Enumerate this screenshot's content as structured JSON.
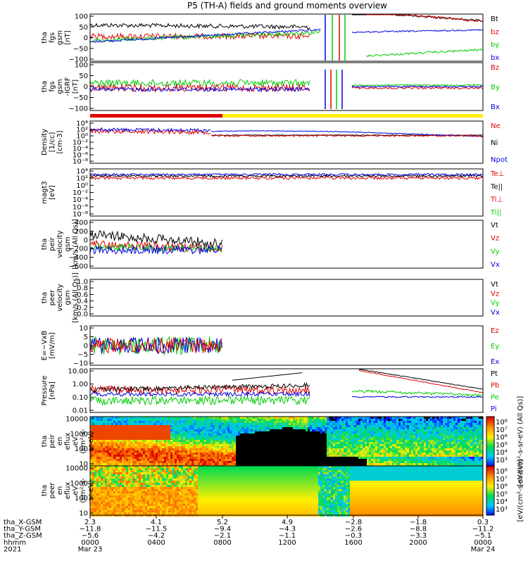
{
  "title": "P5 (TH-A) fields and ground moments overview",
  "colors": {
    "black": "#000000",
    "red": "#e00000",
    "green": "#00cc00",
    "blue": "#0000e0",
    "yellow": "#ffee00",
    "bar_red": "#e00000"
  },
  "chart_data": [
    {
      "type": "line",
      "id": "fgs",
      "ylabel": [
        "tha",
        "fgs",
        "gsm",
        "[nT]"
      ],
      "ylim": [
        -100,
        100
      ],
      "ticks": [
        "100",
        "50",
        "0",
        "−50",
        "−100"
      ],
      "legend": [
        {
          "label": "Bt",
          "color": "#000000"
        },
        {
          "label": "bz",
          "color": "#e00000"
        },
        {
          "label": "by",
          "color": "#00cc00"
        },
        {
          "label": "bx",
          "color": "#0000e0"
        }
      ]
    },
    {
      "type": "line",
      "id": "fgs_igrf",
      "ylabel": [
        "tha",
        "fgs",
        "gsm",
        "-IGRF",
        "[nT]"
      ],
      "ylim": [
        -120,
        120
      ],
      "ticks": [
        "100",
        "50",
        "0",
        "−50",
        "−100"
      ],
      "legend": [
        {
          "label": "Bz",
          "color": "#e00000"
        },
        {
          "label": "By",
          "color": "#00cc00"
        },
        {
          "label": "Bx",
          "color": "#0000e0"
        }
      ]
    },
    {
      "type": "line",
      "id": "density",
      "ylabel": [
        "Density",
        "[1/cc]",
        "[cm-3]"
      ],
      "log": true,
      "ticks": [
        "10⁴",
        "10²",
        "10⁰",
        "10⁻²",
        "10⁻⁴",
        "10⁻⁶",
        "10⁻⁸"
      ],
      "legend": [
        {
          "label": "Ne",
          "color": "#e00000"
        },
        {
          "label": "Ni",
          "color": "#000000"
        },
        {
          "label": "Npot",
          "color": "#0000e0"
        }
      ]
    },
    {
      "type": "line",
      "id": "temp",
      "ylabel": [
        "magt3",
        "[eV]"
      ],
      "log": true,
      "ticks": [
        "10⁴",
        "10²",
        "10⁰",
        "10⁻²",
        "10⁻⁴",
        "10⁻⁶",
        "10⁻⁸"
      ],
      "legend": [
        {
          "label": "Te⊥",
          "color": "#e00000"
        },
        {
          "label": "Te||",
          "color": "#000000"
        },
        {
          "label": "Ti⊥",
          "color": "#e00000"
        },
        {
          "label": "Ti||",
          "color": "#00cc00"
        }
      ]
    },
    {
      "type": "line",
      "id": "peir_vel",
      "ylabel": [
        "tha",
        "peir",
        "velocity",
        "gsm",
        "[km/s (All Qs)]"
      ],
      "ylim": [
        -600,
        400
      ],
      "ticks": [
        "400",
        "200",
        "0",
        "−200",
        "−400",
        "−600"
      ],
      "legend": [
        {
          "label": "Vt",
          "color": "#000000"
        },
        {
          "label": "Vz",
          "color": "#e00000"
        },
        {
          "label": "Vy",
          "color": "#00cc00"
        },
        {
          "label": "Vx",
          "color": "#0000e0"
        }
      ]
    },
    {
      "type": "line",
      "id": "peer_vel",
      "ylabel": [
        "tha",
        "peer",
        "velocity",
        "gsm",
        "[km/s (All Qs)]"
      ],
      "ylim": [
        0,
        1
      ],
      "ticks": [
        "1.0",
        "0.8",
        "0.6",
        "0.4",
        "0.2",
        "0.0"
      ],
      "legend": [
        {
          "label": "Vt",
          "color": "#000000"
        },
        {
          "label": "Vz",
          "color": "#e00000"
        },
        {
          "label": "Vy",
          "color": "#00cc00"
        },
        {
          "label": "Vx",
          "color": "#0000e0"
        }
      ]
    },
    {
      "type": "line",
      "id": "efield",
      "ylabel": [
        "E=−VxB",
        "[mV/m]"
      ],
      "ylim": [
        -10,
        10
      ],
      "ticks": [
        "10",
        "5",
        "0",
        "−5",
        "−10"
      ],
      "legend": [
        {
          "label": "Ez",
          "color": "#e00000"
        },
        {
          "label": "Ey",
          "color": "#00cc00"
        },
        {
          "label": "Ex",
          "color": "#0000e0"
        }
      ]
    },
    {
      "type": "line",
      "id": "pressure",
      "ylabel": [
        "Pressure",
        "[nPa]"
      ],
      "log": true,
      "ticks": [
        "10.00",
        "1.00",
        "0.10",
        "0.01"
      ],
      "legend": [
        {
          "label": "Pt",
          "color": "#000000"
        },
        {
          "label": "Pb",
          "color": "#e00000"
        },
        {
          "label": "Pe",
          "color": "#00cc00"
        },
        {
          "label": "Pi",
          "color": "#0000e0"
        }
      ]
    },
    {
      "type": "heatmap",
      "id": "peir_spec",
      "ylabel": [
        "tha",
        "peir",
        "en",
        "eflux",
        "eV",
        "(cm²-s-",
        "sr-eV)"
      ],
      "ticks": [
        "10000",
        "1000",
        "100",
        "10"
      ],
      "colorbar": {
        "ticks": [
          "10⁸",
          "10⁷",
          "10⁶",
          "10⁵",
          "10⁴",
          "10³"
        ],
        "label": "[eV/(cm²-s-sr-eV) (All Qs)]"
      }
    },
    {
      "type": "heatmap",
      "id": "peer_spec",
      "ylabel": [
        "tha",
        "peer",
        "en",
        "eflux",
        "eV",
        "(cm²-s-",
        "sr-eV)"
      ],
      "ticks": [
        "10000",
        "1000",
        "100",
        "10"
      ],
      "colorbar": {
        "ticks": [
          "10⁸",
          "10⁷",
          "10⁶",
          "10⁵",
          "10⁴",
          "10³"
        ],
        "label": "[eV/(cm²-s-sr-eV)]"
      }
    }
  ],
  "footer": {
    "rows": [
      {
        "label": "tha_X-GSM",
        "values": [
          "2.3",
          "4.1",
          "5.2",
          "4.9",
          "−2.8",
          "−1.8",
          "0.3"
        ]
      },
      {
        "label": "tha_Y-GSM",
        "values": [
          "−11.8",
          "−11.5",
          "−9.4",
          "−4.3",
          "−2.6",
          "−8.8",
          "−11.2"
        ]
      },
      {
        "label": "tha_Z-GSM",
        "values": [
          "−5.6",
          "−4.2",
          "−2.1",
          "−1.1",
          "−0.3",
          "−3.3",
          "−5.1"
        ]
      },
      {
        "label": "hhmm",
        "values": [
          "0000",
          "0400",
          "0800",
          "1200",
          "1600",
          "2000",
          "0000"
        ]
      },
      {
        "label": "2021",
        "values": [
          "Mar 23",
          "",
          "",
          "",
          "",
          "",
          "Mar 24"
        ]
      }
    ]
  }
}
